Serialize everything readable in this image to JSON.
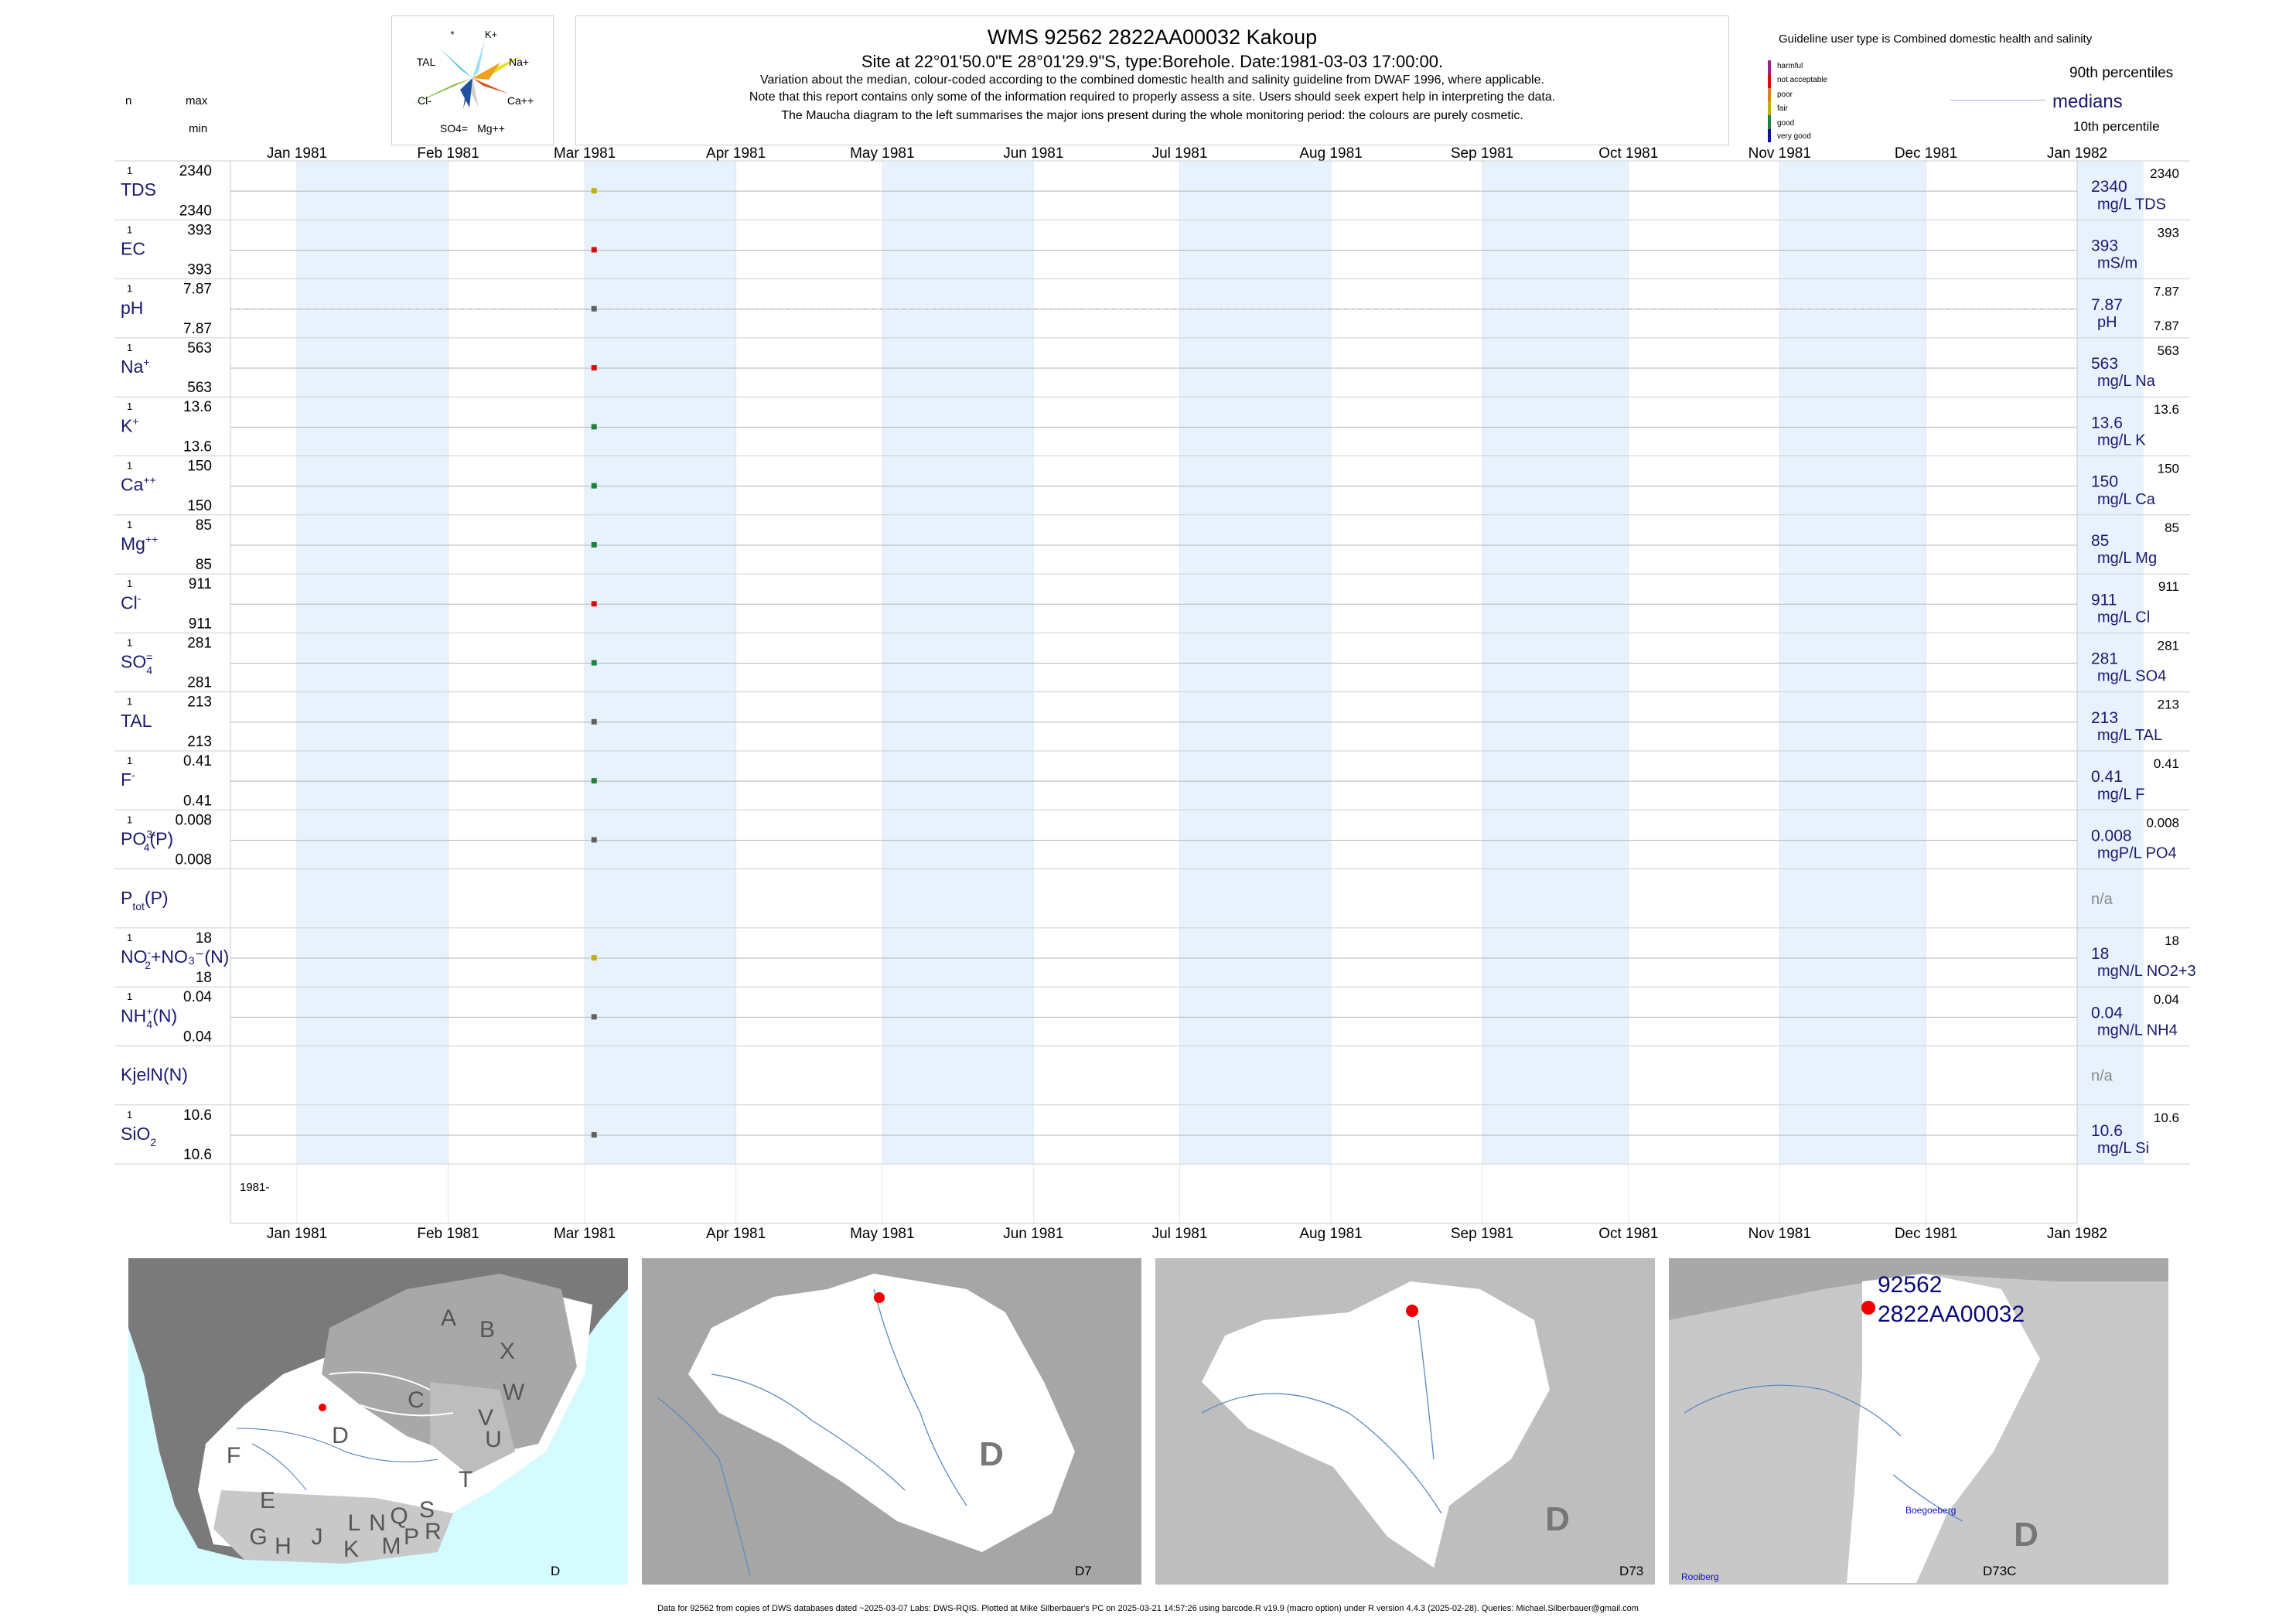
{
  "header": {
    "title": "WMS 92562 2822AA00032 Kakoup",
    "subtitle": "Site at 22°01'50.0\"E 28°01'29.9\"S, type:Borehole. Date:1981-03-03 17:00:00.",
    "note1": "Variation about the median,  colour-coded according to the combined domestic health and salinity guideline from DWAF 1996, where applicable.",
    "note2": "Note that this report contains only some of the information required to properly assess a site. Users should seek expert help in interpreting the data.",
    "note3": "The Maucha diagram to the left summarises the major ions present during the whole monitoring period: the colours are purely cosmetic.",
    "n_label": "n",
    "max_label": "max",
    "min_label": "min"
  },
  "maucha": {
    "labels": [
      "*",
      "K+",
      "TAL",
      "Na+",
      "Cl-",
      "Ca++",
      "SO4=",
      "Mg++"
    ],
    "colors": {
      "na": "#e8e020",
      "k": "#f0a020",
      "ca": "#e05020",
      "mg": "#d0d0d0",
      "so4": "#304080",
      "cl": "#80c040",
      "tal": "#40c0e0"
    }
  },
  "legend": {
    "guideline_text": "Guideline user type is Combined domestic health and salinity",
    "items": [
      {
        "label": "harmful",
        "color": "#a0208a"
      },
      {
        "label": "not acceptable",
        "color": "#d01010"
      },
      {
        "label": "poor",
        "color": "#e08020"
      },
      {
        "label": "fair",
        "color": "#c0b010"
      },
      {
        "label": "good",
        "color": "#208040"
      },
      {
        "label": "very good",
        "color": "#1010a0"
      }
    ],
    "p90_label": "90th percentiles",
    "median_label": "medians",
    "p10_label": "10th percentile"
  },
  "axis": {
    "months": [
      "Jan 1981",
      "Feb 1981",
      "Mar 1981",
      "Apr 1981",
      "May 1981",
      "Jun 1981",
      "Jul 1981",
      "Aug 1981",
      "Sep 1981",
      "Oct 1981",
      "Nov 1981",
      "Dec 1981",
      "Jan 1982"
    ],
    "year_label": "1981-"
  },
  "chart_data": {
    "type": "scatter",
    "x_range": [
      "1981-01-01",
      "1982-01-01"
    ],
    "sample_date": "1981-03-03",
    "panels": [
      {
        "name": "TDS",
        "sup": "",
        "sub": "",
        "n": "1",
        "max": "2340",
        "min": "2340",
        "value": 2340,
        "right_value": "2340",
        "right_label": "2340",
        "unit": "mg/L TDS",
        "color": "#c0b010"
      },
      {
        "name": "EC",
        "sup": "",
        "sub": "",
        "n": "1",
        "max": "393",
        "min": "393",
        "value": 393,
        "right_value": "393",
        "right_label": "393",
        "unit": "mS/m",
        "color": "#d01010"
      },
      {
        "name": "pH",
        "sup": "",
        "sub": "",
        "n": "1",
        "max": "7.87",
        "min": "7.87",
        "value": 7.87,
        "right_value": "7.87",
        "right_label": "7.87",
        "right_min": "7.87",
        "unit": "pH",
        "color": "#606060"
      },
      {
        "name": "Na",
        "sup": "+",
        "sub": "",
        "n": "1",
        "max": "563",
        "min": "563",
        "value": 563,
        "right_value": "563",
        "right_label": "563",
        "unit": "mg/L Na",
        "color": "#d01010"
      },
      {
        "name": "K",
        "sup": "+",
        "sub": "",
        "n": "1",
        "max": "13.6",
        "min": "13.6",
        "value": 13.6,
        "right_value": "13.6",
        "right_label": "13.6",
        "unit": "mg/L K",
        "color": "#208040"
      },
      {
        "name": "Ca",
        "sup": "++",
        "sub": "",
        "n": "1",
        "max": "150",
        "min": "150",
        "value": 150,
        "right_value": "150",
        "right_label": "150",
        "unit": "mg/L Ca",
        "color": "#208040"
      },
      {
        "name": "Mg",
        "sup": "++",
        "sub": "",
        "n": "1",
        "max": "85",
        "min": "85",
        "value": 85,
        "right_value": "85",
        "right_label": "85",
        "unit": "mg/L Mg",
        "color": "#208040"
      },
      {
        "name": "Cl",
        "sup": "-",
        "sub": "",
        "n": "1",
        "max": "911",
        "min": "911",
        "value": 911,
        "right_value": "911",
        "right_label": "911",
        "unit": "mg/L Cl",
        "color": "#d01010"
      },
      {
        "name": "SO",
        "sup": "=",
        "sub": "4",
        "n": "1",
        "max": "281",
        "min": "281",
        "value": 281,
        "right_value": "281",
        "right_label": "281",
        "unit": "mg/L SO4",
        "color": "#208040"
      },
      {
        "name": "TAL",
        "sup": "",
        "sub": "",
        "n": "1",
        "max": "213",
        "min": "213",
        "value": 213,
        "right_value": "213",
        "right_label": "213",
        "unit": "mg/L TAL",
        "color": "#606060"
      },
      {
        "name": "F",
        "sup": "-",
        "sub": "",
        "n": "1",
        "max": "0.41",
        "min": "0.41",
        "value": 0.41,
        "right_value": "0.41",
        "right_label": "0.41",
        "unit": "mg/L F",
        "color": "#208040"
      },
      {
        "name": "PO",
        "sup": "3-",
        "sub": "4",
        "tail": "(P)",
        "n": "1",
        "max": "0.008",
        "min": "0.008",
        "value": 0.008,
        "right_value": "0.008",
        "right_label": "0.008",
        "unit": "mgP/L PO4",
        "color": "#606060"
      },
      {
        "name": "P",
        "sup": "",
        "sub": "tot",
        "tail": "(P)",
        "n": "",
        "max": "",
        "min": "",
        "value": null,
        "right_value": "n/a",
        "right_label": "",
        "unit": "",
        "color": "#606060"
      },
      {
        "name": "NO",
        "sup": "-",
        "sub": "2",
        "tail": "+NO₃⁻(N)",
        "n": "1",
        "max": "18",
        "min": "18",
        "value": 18,
        "right_value": "18",
        "right_label": "18",
        "unit": "mgN/L NO2+3",
        "color": "#c0b010"
      },
      {
        "name": "NH",
        "sup": "+",
        "sub": "4",
        "tail": "(N)",
        "n": "1",
        "max": "0.04",
        "min": "0.04",
        "value": 0.04,
        "right_value": "0.04",
        "right_label": "0.04",
        "unit": "mgN/L NH4",
        "color": "#606060"
      },
      {
        "name": "KjelN(N)",
        "sup": "",
        "sub": "",
        "n": "",
        "max": "",
        "min": "",
        "value": null,
        "right_value": "n/a",
        "right_label": "",
        "unit": "",
        "color": "#606060"
      },
      {
        "name": "SiO",
        "sup": "",
        "sub": "2",
        "n": "1",
        "max": "10.6",
        "min": "10.6",
        "value": 10.6,
        "right_value": "10.6",
        "right_label": "10.6",
        "unit": "mg/L Si",
        "color": "#606060"
      }
    ]
  },
  "maps": {
    "map1": {
      "letters": [
        "A",
        "B",
        "X",
        "W",
        "C",
        "V",
        "U",
        "T",
        "D",
        "F",
        "E",
        "G",
        "H",
        "J",
        "K",
        "L",
        "N",
        "Q",
        "M",
        "P",
        "S",
        "R"
      ],
      "corner": "D"
    },
    "map2": {
      "big_letter": "D",
      "corner": "D7"
    },
    "map3": {
      "big_letter": "D",
      "corner": "D73"
    },
    "map4": {
      "site_id": "92562",
      "site_code": "2822AA00032",
      "big_letter": "D",
      "corner": "D73C",
      "place1": "Boegoeberg",
      "place2": "Rooiberg"
    }
  },
  "footer": "Data for 92562 from copies of DWS databases dated ~2025-03-07 Labs: DWS-RQIS. Plotted at Mike Silberbauer's PC on 2025-03-21 14:57:26 using barcode.R v19.9 (macro option) under R version 4.4.3 (2025-02-28). Queries: Michael.Silberbauer@gmail.com"
}
